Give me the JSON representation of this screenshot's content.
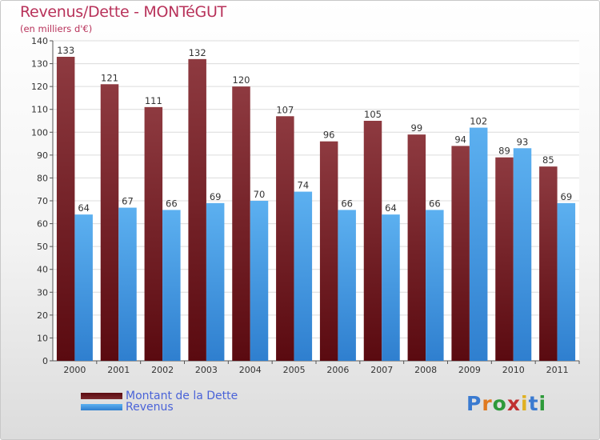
{
  "title": "Revenus/Dette - MONTéGUT",
  "subtitle": "(en milliers d'€)",
  "colors": {
    "dette": "#7a2a2f",
    "revenus": "#4a9fe6",
    "text": "#b8325a",
    "legend_text": "#4a63d8"
  },
  "legend": [
    {
      "label": "Montant de la Dette",
      "color": "#6a1a20"
    },
    {
      "label": "Revenus",
      "color": "#4a9fe6"
    }
  ],
  "logo": {
    "text": "Proxiti",
    "letters": [
      "P",
      "r",
      "o",
      "x",
      "i",
      "t",
      "i"
    ],
    "letter_colors": [
      "#3a7ad0",
      "#e07a20",
      "#2e9a3a",
      "#c03030",
      "#e0b020",
      "#3a7ad0",
      "#2e9a3a"
    ]
  },
  "chart_data": {
    "type": "bar",
    "categories": [
      "2000",
      "2001",
      "2002",
      "2003",
      "2004",
      "2005",
      "2006",
      "2007",
      "2008",
      "2009",
      "2010",
      "2011"
    ],
    "series": [
      {
        "name": "Montant de la Dette",
        "values": [
          133,
          121,
          111,
          132,
          120,
          107,
          96,
          105,
          99,
          94,
          89,
          85
        ]
      },
      {
        "name": "Revenus",
        "values": [
          64,
          67,
          66,
          69,
          70,
          74,
          66,
          64,
          66,
          102,
          93,
          69
        ]
      }
    ],
    "ylim": [
      0,
      140
    ],
    "yticks": [
      0,
      10,
      20,
      30,
      40,
      50,
      60,
      70,
      80,
      90,
      100,
      110,
      120,
      130,
      140
    ],
    "grid": true,
    "legend_position": "bottom-left"
  }
}
